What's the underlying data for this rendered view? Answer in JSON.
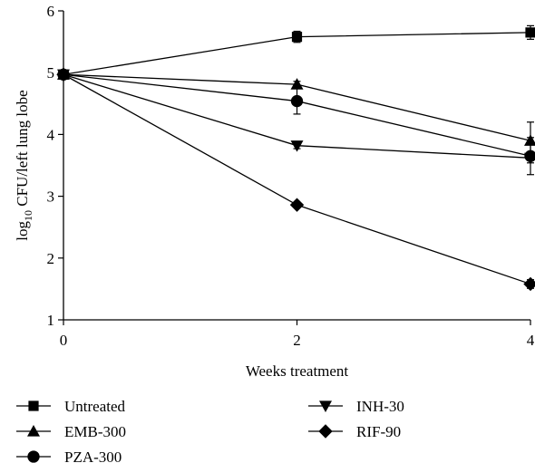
{
  "chart_data": {
    "type": "line",
    "xlabel": "Weeks treatment",
    "ylabel_prefix": "log",
    "ylabel_sub": "10",
    "ylabel_suffix": " CFU/left lung lobe",
    "xlim": [
      0,
      4
    ],
    "ylim": [
      1,
      6
    ],
    "x_ticks": [
      0,
      2,
      4
    ],
    "y_ticks": [
      1,
      2,
      3,
      4,
      5,
      6
    ],
    "grid": false,
    "legend_position": "bottom",
    "x": [
      0,
      2,
      4
    ],
    "series": [
      {
        "name": "Untreated",
        "marker": "square",
        "values": [
          4.97,
          5.58,
          5.65
        ],
        "errors": [
          0.06,
          0.09,
          0.11
        ]
      },
      {
        "name": "EMB-300",
        "marker": "triangle-up",
        "values": [
          4.97,
          4.81,
          3.9
        ],
        "errors": [
          0.06,
          0.05,
          0.3
        ]
      },
      {
        "name": "PZA-300",
        "marker": "circle",
        "values": [
          4.97,
          4.54,
          3.65
        ],
        "errors": [
          0.06,
          0.21,
          0.3
        ]
      },
      {
        "name": "INH-30",
        "marker": "triangle-down",
        "values": [
          4.97,
          3.82,
          3.62
        ],
        "errors": [
          0.06,
          0.05,
          0.08
        ]
      },
      {
        "name": "RIF-90",
        "marker": "diamond",
        "values": [
          4.97,
          2.86,
          1.58
        ],
        "errors": [
          0.06,
          0.04,
          0.07
        ]
      }
    ]
  }
}
